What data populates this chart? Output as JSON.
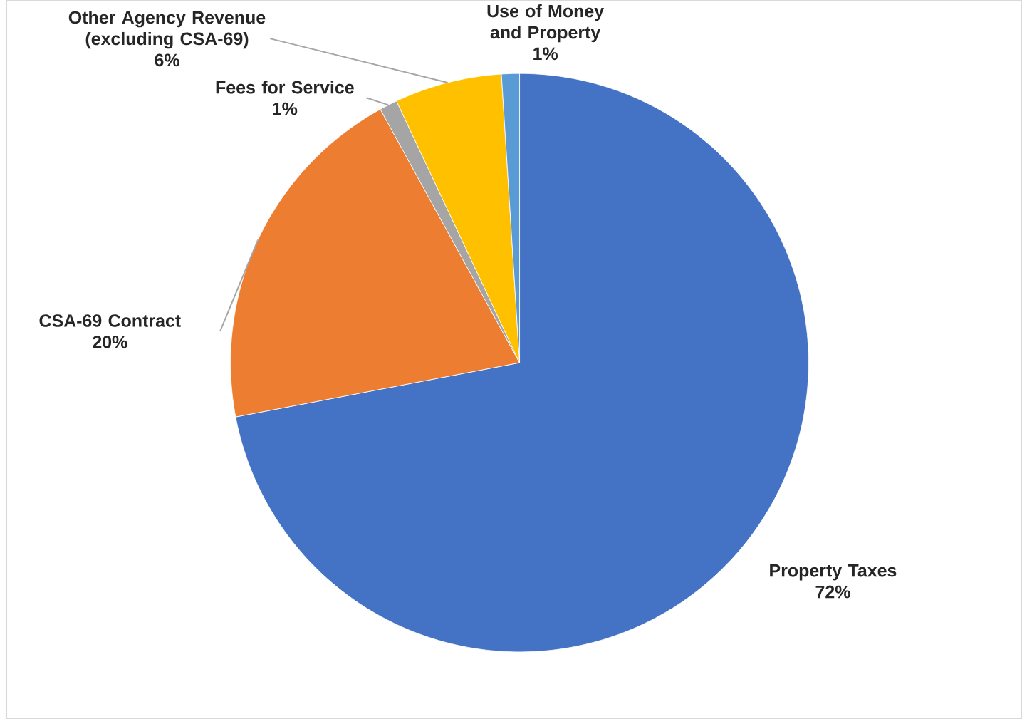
{
  "chart_data": {
    "type": "pie",
    "categories": [
      "Property Taxes",
      "CSA-69 Contract",
      "Fees for Service",
      "Other Agency Revenue (excluding CSA-69)",
      "Use of Money and Property"
    ],
    "values": [
      72,
      20,
      1,
      6,
      1
    ],
    "value_labels": [
      "72%",
      "20%",
      "1%",
      "6%",
      "1%"
    ],
    "colors": [
      "#4472c4",
      "#ed7d31",
      "#a5a5a5",
      "#ffc000",
      "#5b9bd5"
    ]
  }
}
